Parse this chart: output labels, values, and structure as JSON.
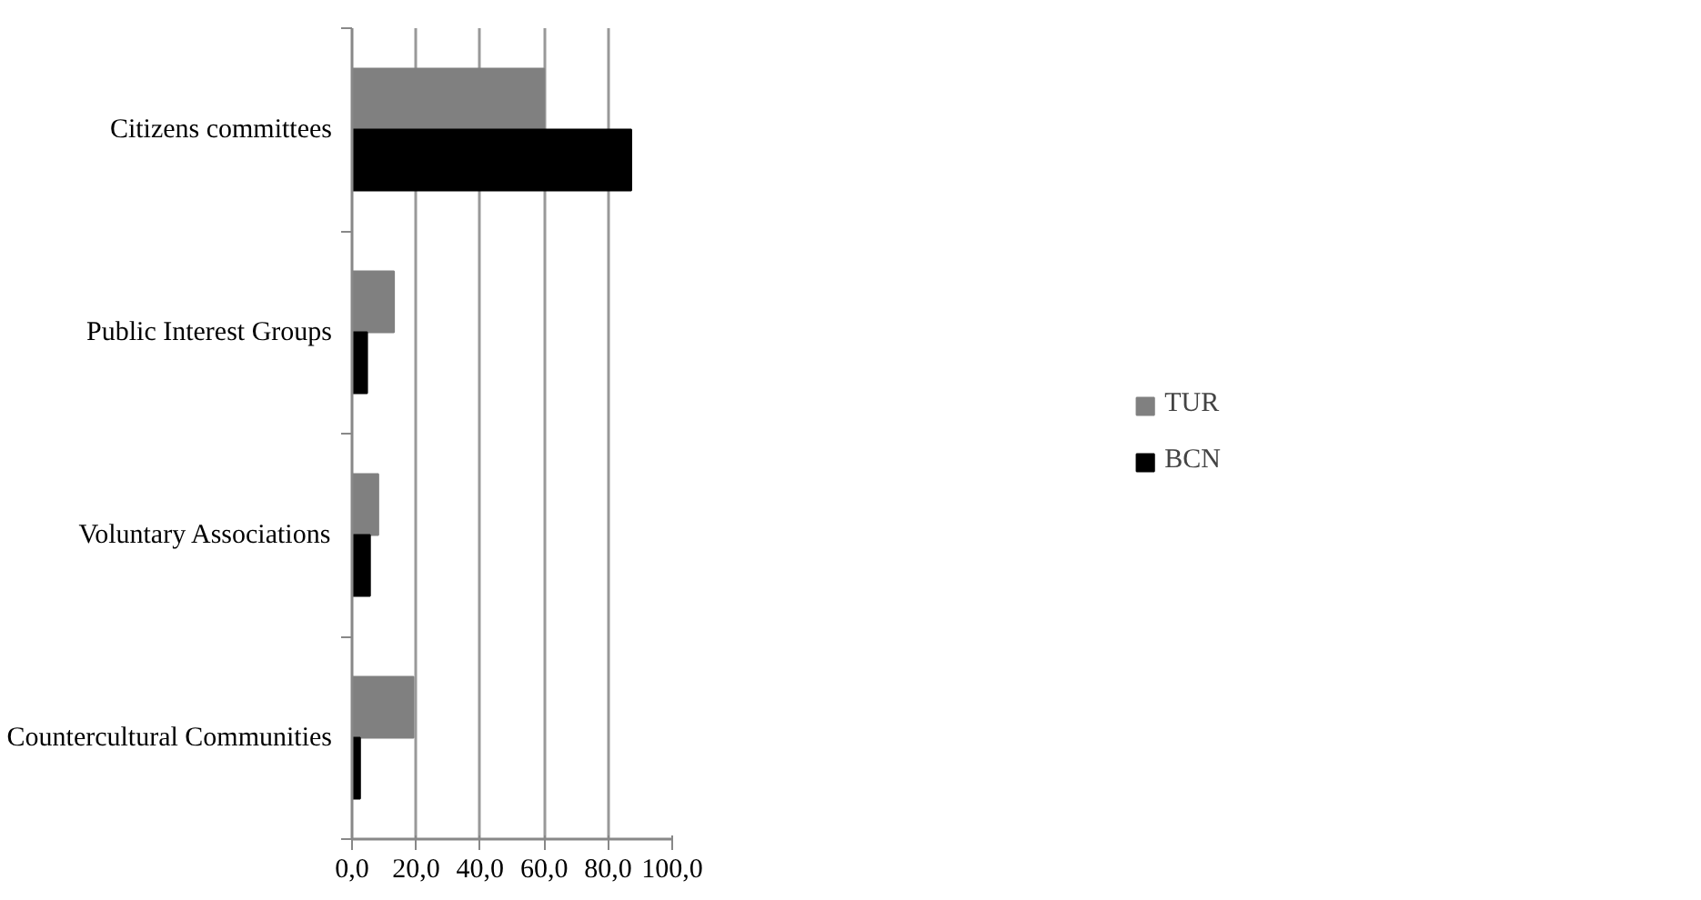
{
  "chart_data": {
    "type": "bar",
    "orientation": "horizontal",
    "categories": [
      "Citizens committees",
      "Public Interest Groups",
      "Voluntary Associations",
      "Countercultural Communities"
    ],
    "series": [
      {
        "name": "TUR",
        "color": "#808080",
        "values": [
          60.0,
          13.1,
          8.2,
          19.2
        ]
      },
      {
        "name": "BCN",
        "color": "#000000",
        "values": [
          87.2,
          4.7,
          5.6,
          2.5
        ]
      }
    ],
    "xlim": [
      0,
      100
    ],
    "xticks": [
      {
        "value": 0,
        "label": "0,0"
      },
      {
        "value": 20,
        "label": "20,0"
      },
      {
        "value": 40,
        "label": "40,0"
      },
      {
        "value": 60,
        "label": "60,0"
      },
      {
        "value": 80,
        "label": "80,0"
      },
      {
        "value": 100,
        "label": "100,0"
      }
    ],
    "grid": "x",
    "legend": "right"
  }
}
